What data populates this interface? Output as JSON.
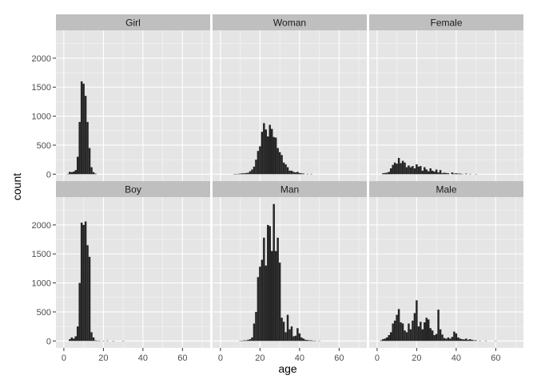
{
  "chart_data": {
    "type": "bar",
    "chart_kind": "faceted histogram",
    "title": "",
    "xlabel": "age",
    "ylabel": "count",
    "xlim": [
      -4,
      74
    ],
    "ylim": [
      -120,
      2480
    ],
    "x_ticks": [
      0,
      20,
      40,
      60
    ],
    "y_ticks": [
      0,
      500,
      1000,
      1500,
      2000
    ],
    "bin_width": 1,
    "grid": true,
    "panel_background": "#e5e5e5",
    "strip_background": "#bfbfbf",
    "bar_color": "#262626",
    "grid_color": "#ffffff",
    "facets": [
      {
        "label": "Girl",
        "bins": [
          [
            2,
            5
          ],
          [
            3,
            40
          ],
          [
            4,
            35
          ],
          [
            5,
            45
          ],
          [
            6,
            70
          ],
          [
            7,
            300
          ],
          [
            8,
            900
          ],
          [
            9,
            1600
          ],
          [
            10,
            1560
          ],
          [
            11,
            1350
          ],
          [
            12,
            900
          ],
          [
            13,
            450
          ],
          [
            14,
            120
          ],
          [
            15,
            35
          ],
          [
            16,
            10
          ]
        ]
      },
      {
        "label": "Woman",
        "bins": [
          [
            7,
            3
          ],
          [
            8,
            5
          ],
          [
            9,
            5
          ],
          [
            10,
            10
          ],
          [
            11,
            15
          ],
          [
            12,
            15
          ],
          [
            13,
            20
          ],
          [
            14,
            25
          ],
          [
            15,
            50
          ],
          [
            16,
            80
          ],
          [
            17,
            130
          ],
          [
            18,
            250
          ],
          [
            19,
            400
          ],
          [
            20,
            480
          ],
          [
            21,
            730
          ],
          [
            22,
            880
          ],
          [
            23,
            770
          ],
          [
            24,
            650
          ],
          [
            25,
            850
          ],
          [
            26,
            780
          ],
          [
            27,
            640
          ],
          [
            28,
            630
          ],
          [
            29,
            450
          ],
          [
            30,
            380
          ],
          [
            31,
            330
          ],
          [
            32,
            200
          ],
          [
            33,
            170
          ],
          [
            34,
            120
          ],
          [
            35,
            60
          ],
          [
            36,
            60
          ],
          [
            37,
            40
          ],
          [
            38,
            30
          ],
          [
            39,
            40
          ],
          [
            40,
            20
          ],
          [
            41,
            15
          ],
          [
            42,
            10
          ],
          [
            44,
            5
          ],
          [
            46,
            5
          ]
        ]
      },
      {
        "label": "Female",
        "bins": [
          [
            3,
            15
          ],
          [
            4,
            20
          ],
          [
            5,
            25
          ],
          [
            6,
            40
          ],
          [
            7,
            100
          ],
          [
            8,
            160
          ],
          [
            9,
            200
          ],
          [
            10,
            180
          ],
          [
            11,
            280
          ],
          [
            12,
            190
          ],
          [
            13,
            230
          ],
          [
            14,
            200
          ],
          [
            15,
            120
          ],
          [
            16,
            150
          ],
          [
            17,
            120
          ],
          [
            18,
            140
          ],
          [
            19,
            100
          ],
          [
            20,
            170
          ],
          [
            21,
            130
          ],
          [
            22,
            140
          ],
          [
            23,
            60
          ],
          [
            24,
            120
          ],
          [
            25,
            80
          ],
          [
            26,
            50
          ],
          [
            27,
            100
          ],
          [
            28,
            60
          ],
          [
            29,
            45
          ],
          [
            30,
            80
          ],
          [
            31,
            30
          ],
          [
            32,
            70
          ],
          [
            33,
            20
          ],
          [
            34,
            25
          ],
          [
            35,
            20
          ],
          [
            36,
            15
          ],
          [
            38,
            30
          ],
          [
            39,
            10
          ],
          [
            40,
            15
          ],
          [
            41,
            10
          ],
          [
            42,
            10
          ],
          [
            43,
            5
          ],
          [
            45,
            10
          ],
          [
            47,
            5
          ],
          [
            50,
            5
          ]
        ]
      },
      {
        "label": "Boy",
        "bins": [
          [
            3,
            30
          ],
          [
            4,
            60
          ],
          [
            5,
            40
          ],
          [
            6,
            80
          ],
          [
            7,
            250
          ],
          [
            8,
            1000
          ],
          [
            9,
            2040
          ],
          [
            10,
            2000
          ],
          [
            11,
            2060
          ],
          [
            12,
            1650
          ],
          [
            13,
            1450
          ],
          [
            14,
            150
          ],
          [
            15,
            60
          ],
          [
            16,
            10
          ],
          [
            17,
            5
          ],
          [
            18,
            5
          ],
          [
            20,
            5
          ],
          [
            22,
            5
          ],
          [
            25,
            3
          ],
          [
            30,
            3
          ]
        ]
      },
      {
        "label": "Man",
        "bins": [
          [
            10,
            5
          ],
          [
            11,
            5
          ],
          [
            12,
            10
          ],
          [
            13,
            10
          ],
          [
            14,
            20
          ],
          [
            15,
            30
          ],
          [
            16,
            60
          ],
          [
            17,
            300
          ],
          [
            18,
            500
          ],
          [
            19,
            1100
          ],
          [
            20,
            1280
          ],
          [
            21,
            1400
          ],
          [
            22,
            1780
          ],
          [
            23,
            1300
          ],
          [
            24,
            2000
          ],
          [
            25,
            1980
          ],
          [
            26,
            1550
          ],
          [
            27,
            2360
          ],
          [
            28,
            1550
          ],
          [
            29,
            1780
          ],
          [
            30,
            1350
          ],
          [
            31,
            400
          ],
          [
            32,
            330
          ],
          [
            33,
            150
          ],
          [
            34,
            450
          ],
          [
            35,
            200
          ],
          [
            36,
            250
          ],
          [
            37,
            80
          ],
          [
            38,
            90
          ],
          [
            39,
            220
          ],
          [
            40,
            130
          ],
          [
            41,
            60
          ],
          [
            42,
            40
          ],
          [
            43,
            20
          ],
          [
            44,
            15
          ],
          [
            45,
            10
          ],
          [
            46,
            10
          ],
          [
            47,
            5
          ],
          [
            48,
            5
          ],
          [
            50,
            5
          ]
        ]
      },
      {
        "label": "Male",
        "bins": [
          [
            2,
            10
          ],
          [
            3,
            30
          ],
          [
            4,
            40
          ],
          [
            5,
            60
          ],
          [
            6,
            100
          ],
          [
            7,
            150
          ],
          [
            8,
            300
          ],
          [
            9,
            350
          ],
          [
            10,
            450
          ],
          [
            11,
            550
          ],
          [
            12,
            320
          ],
          [
            13,
            300
          ],
          [
            14,
            180
          ],
          [
            15,
            150
          ],
          [
            16,
            300
          ],
          [
            17,
            200
          ],
          [
            18,
            350
          ],
          [
            19,
            480
          ],
          [
            20,
            700
          ],
          [
            21,
            250
          ],
          [
            22,
            330
          ],
          [
            23,
            200
          ],
          [
            24,
            320
          ],
          [
            25,
            400
          ],
          [
            26,
            370
          ],
          [
            27,
            220
          ],
          [
            28,
            180
          ],
          [
            29,
            100
          ],
          [
            30,
            120
          ],
          [
            31,
            540
          ],
          [
            32,
            200
          ],
          [
            33,
            110
          ],
          [
            34,
            50
          ],
          [
            35,
            40
          ],
          [
            36,
            60
          ],
          [
            37,
            40
          ],
          [
            38,
            70
          ],
          [
            39,
            160
          ],
          [
            40,
            130
          ],
          [
            41,
            60
          ],
          [
            42,
            40
          ],
          [
            43,
            30
          ],
          [
            44,
            25
          ],
          [
            45,
            40
          ],
          [
            46,
            20
          ],
          [
            47,
            30
          ],
          [
            48,
            20
          ],
          [
            49,
            10
          ],
          [
            50,
            10
          ],
          [
            52,
            5
          ],
          [
            55,
            5
          ],
          [
            60,
            5
          ]
        ]
      }
    ]
  }
}
